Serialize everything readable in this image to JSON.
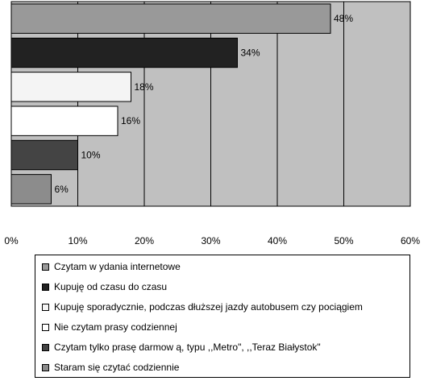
{
  "chart_data": {
    "type": "bar",
    "orientation": "horizontal",
    "categories": [
      "Czytam w ydania internetowe",
      "Kupuję od czasu do czasu",
      "Kupuję sporadycznie, podczas dłuższej jazdy autobusem czy pociągiem",
      "Nie czytam prasy codziennej",
      "Czytam tylko prasę darmow ą, typu ,,Metro\", ,,Teraz Białystok\"",
      "Staram się czytać codziennie"
    ],
    "values": [
      48,
      34,
      18,
      16,
      10,
      6
    ],
    "data_labels": [
      "48%",
      "34%",
      "18%",
      "16%",
      "10%",
      "6%"
    ],
    "colors": [
      "#999999",
      "#222222",
      "#f4f4f4",
      "#ffffff",
      "#444444",
      "#8c8c8c"
    ],
    "xlim": [
      0,
      60
    ],
    "x_ticks": [
      "0%",
      "10%",
      "20%",
      "30%",
      "40%",
      "50%",
      "60%"
    ],
    "plot_background": "#c0c0c0",
    "grid": true,
    "legend": "bottom"
  },
  "legend_items": [
    "Czytam w ydania internetowe",
    "Kupuję od czasu do czasu",
    "Kupuję sporadycznie, podczas dłuższej jazdy autobusem czy pociągiem",
    "Nie czytam prasy codziennej",
    "Czytam tylko prasę darmow ą, typu ,,Metro\", ,,Teraz Białystok\"",
    "Staram się czytać codziennie"
  ]
}
